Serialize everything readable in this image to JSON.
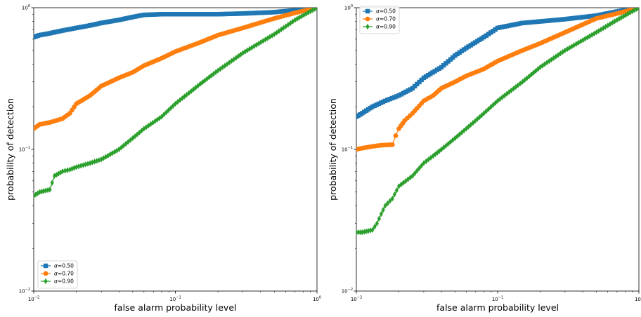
{
  "chart_data": [
    {
      "type": "line",
      "xscale": "log",
      "yscale": "log",
      "xlim": [
        0.01,
        1
      ],
      "ylim": [
        0.01,
        1
      ],
      "xlabel": "false alarm probability level",
      "ylabel": "probability of detection",
      "xticks": [
        {
          "base": "10",
          "exp": "−2"
        },
        {
          "base": "10",
          "exp": "−1"
        },
        {
          "base": "10",
          "exp": "0"
        }
      ],
      "yticks": [
        {
          "base": "10",
          "exp": "−2"
        },
        {
          "base": "10",
          "exp": "−1"
        },
        {
          "base": "10",
          "exp": "0"
        }
      ],
      "legend_position": "lower-left",
      "series": [
        {
          "name": "α=0.50",
          "label_prefix": "α",
          "label_value": "=0.50",
          "color": "#1f77b4",
          "marker": "square",
          "x": [
            0.01,
            0.011,
            0.013,
            0.016,
            0.02,
            0.025,
            0.03,
            0.04,
            0.05,
            0.06,
            0.08,
            0.1,
            0.15,
            0.2,
            0.3,
            0.5,
            0.7,
            1.0
          ],
          "y": [
            0.62,
            0.64,
            0.66,
            0.69,
            0.72,
            0.75,
            0.78,
            0.82,
            0.86,
            0.89,
            0.9,
            0.9,
            0.9,
            0.9,
            0.91,
            0.93,
            0.96,
            1.0
          ]
        },
        {
          "name": "α=0.70",
          "label_prefix": "α",
          "label_value": "=0.70",
          "color": "#ff7f0e",
          "marker": "circle",
          "x": [
            0.01,
            0.011,
            0.013,
            0.016,
            0.018,
            0.02,
            0.025,
            0.03,
            0.04,
            0.05,
            0.06,
            0.08,
            0.1,
            0.15,
            0.2,
            0.3,
            0.5,
            0.7,
            1.0
          ],
          "y": [
            0.14,
            0.15,
            0.155,
            0.165,
            0.18,
            0.21,
            0.24,
            0.28,
            0.32,
            0.35,
            0.39,
            0.44,
            0.49,
            0.57,
            0.64,
            0.72,
            0.84,
            0.92,
            1.0
          ]
        },
        {
          "name": "α=0.90",
          "label_prefix": "α",
          "label_value": "=0.90",
          "color": "#2ca02c",
          "marker": "diamond",
          "x": [
            0.01,
            0.011,
            0.013,
            0.014,
            0.016,
            0.018,
            0.02,
            0.025,
            0.03,
            0.04,
            0.05,
            0.06,
            0.08,
            0.1,
            0.15,
            0.2,
            0.3,
            0.5,
            0.7,
            1.0
          ],
          "y": [
            0.047,
            0.05,
            0.052,
            0.065,
            0.07,
            0.072,
            0.075,
            0.08,
            0.085,
            0.1,
            0.12,
            0.14,
            0.17,
            0.21,
            0.29,
            0.36,
            0.48,
            0.65,
            0.82,
            1.0
          ]
        }
      ]
    },
    {
      "type": "line",
      "xscale": "log",
      "yscale": "log",
      "xlim": [
        0.01,
        1
      ],
      "ylim": [
        0.01,
        1
      ],
      "xlabel": "false alarm probability level",
      "ylabel": "probability of detection",
      "xticks": [
        {
          "base": "10",
          "exp": "−2"
        },
        {
          "base": "10",
          "exp": "−1"
        },
        {
          "base": "10",
          "exp": "0"
        }
      ],
      "yticks": [
        {
          "base": "10",
          "exp": "−2"
        },
        {
          "base": "10",
          "exp": "−1"
        },
        {
          "base": "10",
          "exp": "0"
        }
      ],
      "legend_position": "upper-left",
      "series": [
        {
          "name": "α=0.50",
          "label_prefix": "α",
          "label_value": "=0.50",
          "color": "#1f77b4",
          "marker": "square",
          "x": [
            0.01,
            0.011,
            0.013,
            0.016,
            0.02,
            0.025,
            0.03,
            0.04,
            0.05,
            0.06,
            0.08,
            0.1,
            0.15,
            0.2,
            0.3,
            0.5,
            0.7,
            1.0
          ],
          "y": [
            0.17,
            0.18,
            0.2,
            0.22,
            0.24,
            0.27,
            0.32,
            0.38,
            0.46,
            0.52,
            0.62,
            0.72,
            0.78,
            0.8,
            0.83,
            0.88,
            0.94,
            1.0
          ]
        },
        {
          "name": "α=0.70",
          "label_prefix": "α",
          "label_value": "=0.70",
          "color": "#ff7f0e",
          "marker": "circle",
          "x": [
            0.01,
            0.011,
            0.013,
            0.015,
            0.018,
            0.019,
            0.02,
            0.022,
            0.025,
            0.03,
            0.035,
            0.04,
            0.05,
            0.06,
            0.08,
            0.1,
            0.15,
            0.2,
            0.3,
            0.5,
            0.7,
            1.0
          ],
          "y": [
            0.1,
            0.102,
            0.105,
            0.107,
            0.108,
            0.125,
            0.14,
            0.16,
            0.18,
            0.22,
            0.24,
            0.27,
            0.3,
            0.33,
            0.37,
            0.42,
            0.5,
            0.56,
            0.67,
            0.84,
            0.91,
            1.0
          ]
        },
        {
          "name": "α=0.90",
          "label_prefix": "α",
          "label_value": "=0.90",
          "color": "#2ca02c",
          "marker": "diamond",
          "x": [
            0.01,
            0.011,
            0.013,
            0.014,
            0.015,
            0.016,
            0.018,
            0.02,
            0.025,
            0.03,
            0.035,
            0.04,
            0.05,
            0.06,
            0.08,
            0.1,
            0.15,
            0.2,
            0.3,
            0.5,
            0.7,
            1.0
          ],
          "y": [
            0.026,
            0.026,
            0.027,
            0.03,
            0.035,
            0.04,
            0.045,
            0.055,
            0.065,
            0.08,
            0.09,
            0.1,
            0.12,
            0.14,
            0.18,
            0.22,
            0.3,
            0.38,
            0.5,
            0.67,
            0.82,
            1.0
          ]
        }
      ]
    }
  ]
}
